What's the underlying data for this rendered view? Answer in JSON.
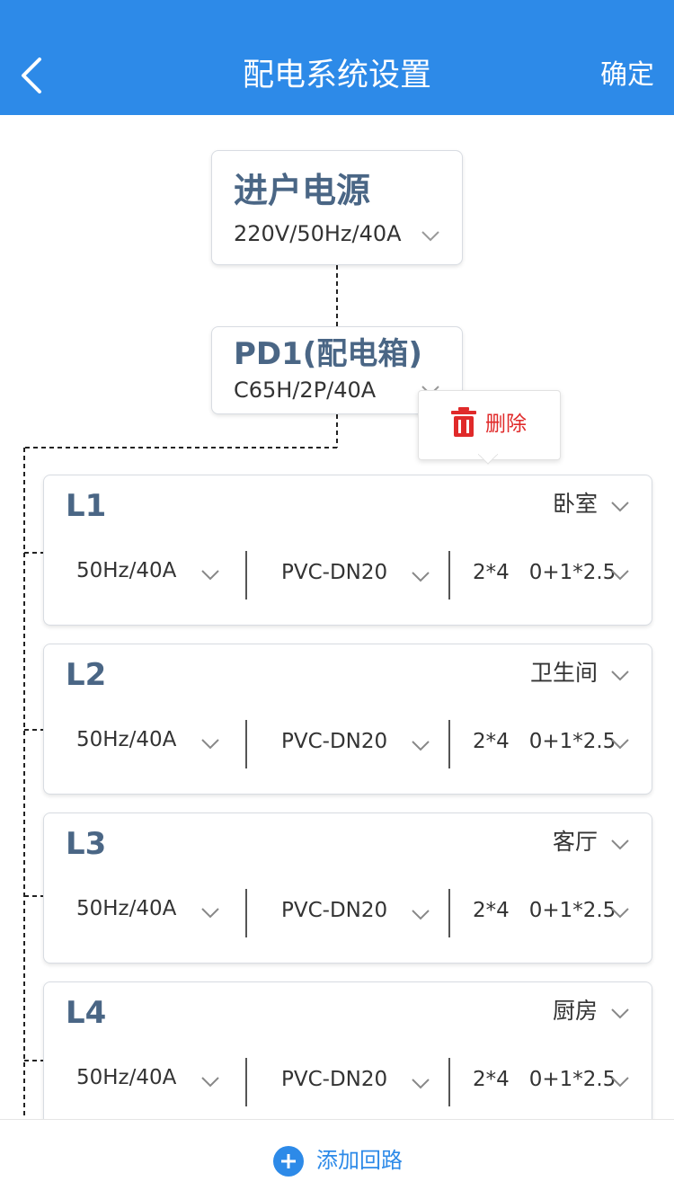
{
  "header": {
    "title": "配电系统设置",
    "confirm_label": "确定",
    "back_icon": "chevron-left-icon",
    "bg_color": "#2d8ae8"
  },
  "source": {
    "title": "进户电源",
    "value": "220V/50Hz/40A"
  },
  "distribution_box": {
    "title": "PD1(配电箱)",
    "value": "C65H/2P/40A"
  },
  "popup": {
    "delete_label": "删除",
    "icon": "trash-icon",
    "color": "#e02a2a"
  },
  "circuits": [
    {
      "name": "L1",
      "room": "卧室",
      "breaker": "50Hz/40A",
      "pipe": "PVC-DN20",
      "wire": "2*4   0+1*2.5"
    },
    {
      "name": "L2",
      "room": "卫生间",
      "breaker": "50Hz/40A",
      "pipe": "PVC-DN20",
      "wire": "2*4   0+1*2.5"
    },
    {
      "name": "L3",
      "room": "客厅",
      "breaker": "50Hz/40A",
      "pipe": "PVC-DN20",
      "wire": "2*4   0+1*2.5"
    },
    {
      "name": "L4",
      "room": "厨房",
      "breaker": "50Hz/40A",
      "pipe": "PVC-DN20",
      "wire": "2*4   0+1*2.5"
    }
  ],
  "footer": {
    "add_label": "添加回路",
    "icon": "plus-circle-icon"
  }
}
